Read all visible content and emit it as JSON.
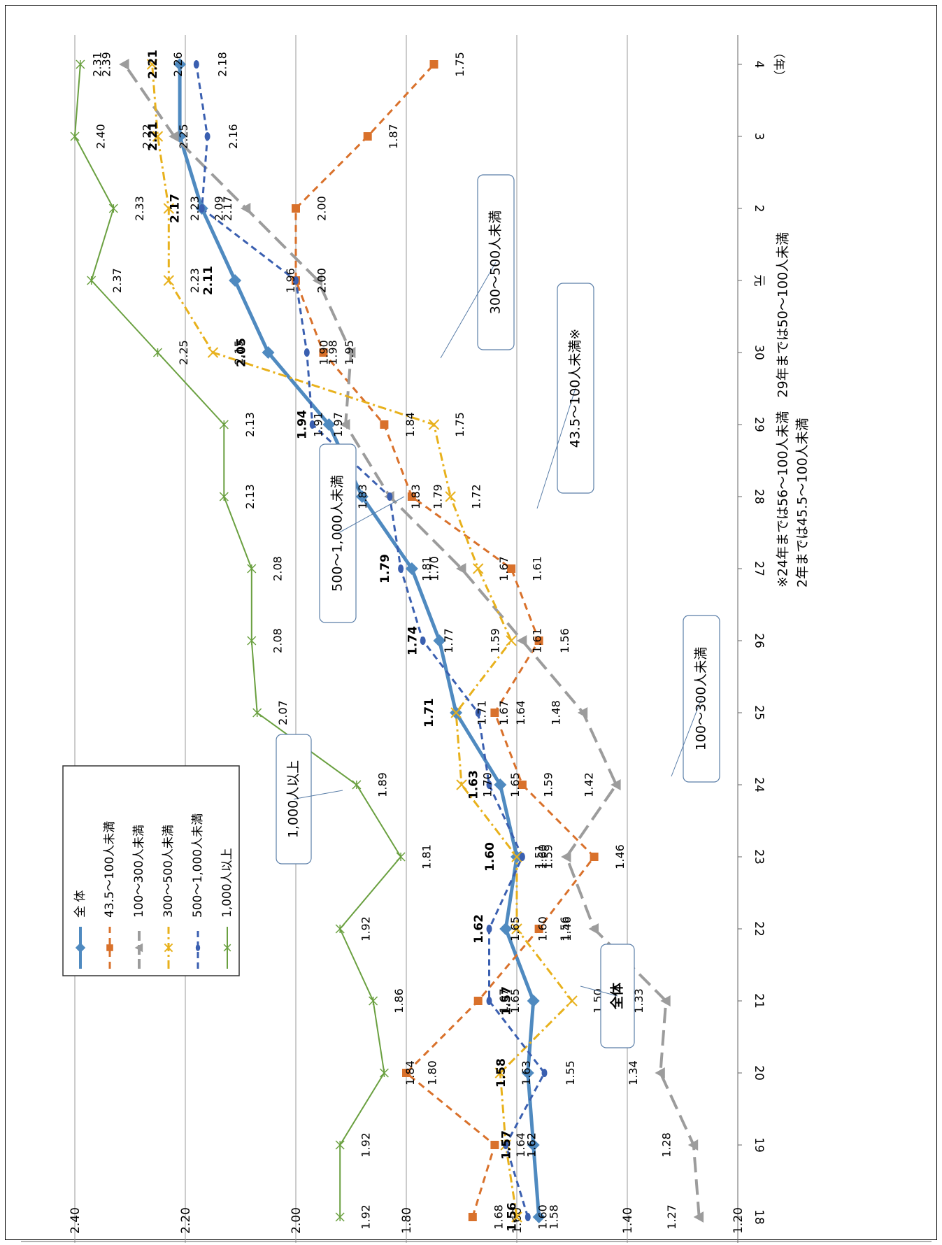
{
  "chart_data": {
    "type": "line",
    "orientation": "rotated-90-clockwise",
    "categories": [
      "18",
      "19",
      "20",
      "21",
      "22",
      "23",
      "24",
      "25",
      "26",
      "27",
      "28",
      "29",
      "30",
      "元",
      "2",
      "3",
      "4"
    ],
    "unit_label": "（年）",
    "y_ticks": [
      "1.20",
      "1.40",
      "1.60",
      "1.80",
      "2.00",
      "2.20",
      "2.40"
    ],
    "ylim": [
      1.2,
      2.4
    ],
    "grid": true,
    "legend_placement": "left-bottom",
    "series": [
      {
        "name": "全 体",
        "color": "#4f8ac0",
        "values": [
          1.56,
          1.57,
          1.58,
          1.57,
          1.62,
          1.6,
          1.63,
          1.71,
          1.74,
          1.79,
          1.88,
          1.94,
          2.05,
          2.11,
          2.17,
          2.21,
          2.21
        ]
      },
      {
        "name": "43.5～100人未満",
        "color": "#d9712b",
        "values": [
          1.68,
          1.64,
          1.8,
          1.67,
          1.56,
          1.46,
          1.59,
          1.64,
          1.56,
          1.61,
          1.79,
          1.84,
          1.95,
          2.0,
          2.0,
          1.87,
          1.75
        ]
      },
      {
        "name": "100～300人未満",
        "color": "#9c9c9c",
        "values": [
          1.27,
          1.28,
          1.34,
          1.33,
          1.46,
          1.51,
          1.42,
          1.48,
          1.59,
          1.7,
          1.83,
          1.91,
          1.9,
          1.96,
          2.09,
          2.22,
          2.31
        ]
      },
      {
        "name": "300～500人未満",
        "color": "#e8b11c",
        "values": [
          1.6,
          1.62,
          1.63,
          1.5,
          1.6,
          1.6,
          1.7,
          1.71,
          1.61,
          1.67,
          1.72,
          1.75,
          2.15,
          2.23,
          2.23,
          2.25,
          2.26
        ]
      },
      {
        "name": "500～1,000人未満",
        "color": "#3a5fb0",
        "values": [
          1.58,
          1.62,
          1.55,
          1.65,
          1.65,
          1.59,
          1.65,
          1.67,
          1.77,
          1.81,
          1.83,
          1.97,
          1.98,
          2.0,
          2.17,
          2.16,
          2.18
        ]
      },
      {
        "name": "1,000人以上",
        "color": "#6aa040",
        "values": [
          1.92,
          1.92,
          1.84,
          1.86,
          1.92,
          1.81,
          1.89,
          2.07,
          2.08,
          2.08,
          2.13,
          2.13,
          2.25,
          2.37,
          2.33,
          2.4,
          2.39
        ]
      }
    ],
    "annotations": [
      {
        "text": "全体"
      },
      {
        "text": "1,000人以上"
      },
      {
        "text": "500～1,000人未満"
      },
      {
        "text": "300～500人未満"
      },
      {
        "text": "43.5～100人未満※"
      },
      {
        "text": "100～300人未満"
      }
    ],
    "footnotes": [
      "※24年までは56～100人未満　29年までは50～100人未満",
      "2年までは45.5～100人未満"
    ]
  }
}
